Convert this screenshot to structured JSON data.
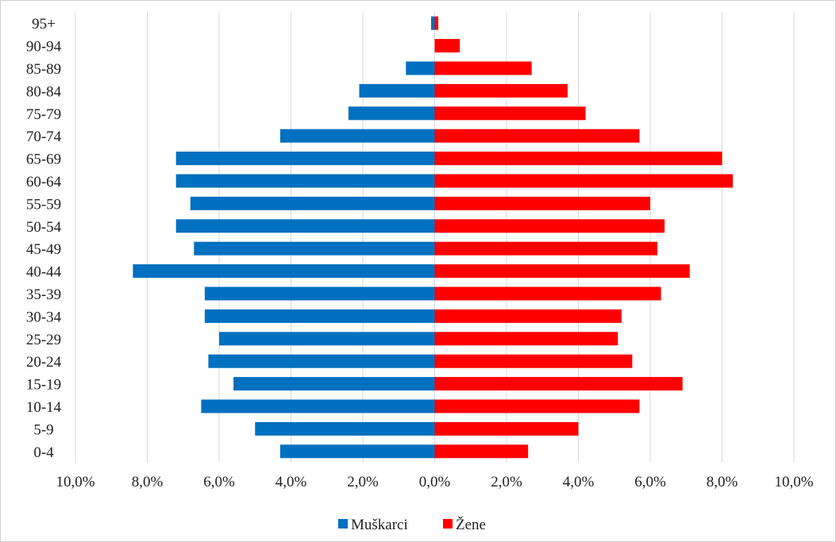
{
  "chart_data": {
    "type": "bar",
    "orientation": "horizontal",
    "title": "",
    "xlabel": "",
    "ylabel": "",
    "xlim": [
      -10,
      10
    ],
    "x_ticks": [
      -10,
      -8,
      -6,
      -4,
      -2,
      0,
      2,
      4,
      6,
      8,
      10
    ],
    "x_tick_labels": [
      "10,0%",
      "8,0%",
      "6,0%",
      "4,0%",
      "2,0%",
      "0,0%",
      "2,0%",
      "4,0%",
      "6,0%",
      "8,0%",
      "10,0%"
    ],
    "grid": true,
    "legend_position": "bottom",
    "categories": [
      "0-4",
      "5-9",
      "10-14",
      "15-19",
      "20-24",
      "25-29",
      "30-34",
      "35-39",
      "40-44",
      "45-49",
      "50-54",
      "55-59",
      "60-64",
      "65-69",
      "70-74",
      "75-79",
      "80-84",
      "85-89",
      "90-94",
      "95+"
    ],
    "series": [
      {
        "name": "Muškarci",
        "color": "#0070c0",
        "values": [
          -4.3,
          -5.0,
          -6.5,
          -5.6,
          -6.3,
          -6.0,
          -6.4,
          -6.4,
          -8.4,
          -6.7,
          -7.2,
          -6.8,
          -7.2,
          -7.2,
          -4.3,
          -2.4,
          -2.1,
          -0.8,
          0.0,
          -0.1
        ]
      },
      {
        "name": "Žene",
        "color": "#ff0000",
        "values": [
          2.6,
          4.0,
          5.7,
          6.9,
          5.5,
          5.1,
          5.2,
          6.3,
          7.1,
          6.2,
          6.4,
          6.0,
          8.3,
          8.0,
          5.7,
          4.2,
          3.7,
          2.7,
          0.7,
          0.1
        ]
      }
    ]
  }
}
